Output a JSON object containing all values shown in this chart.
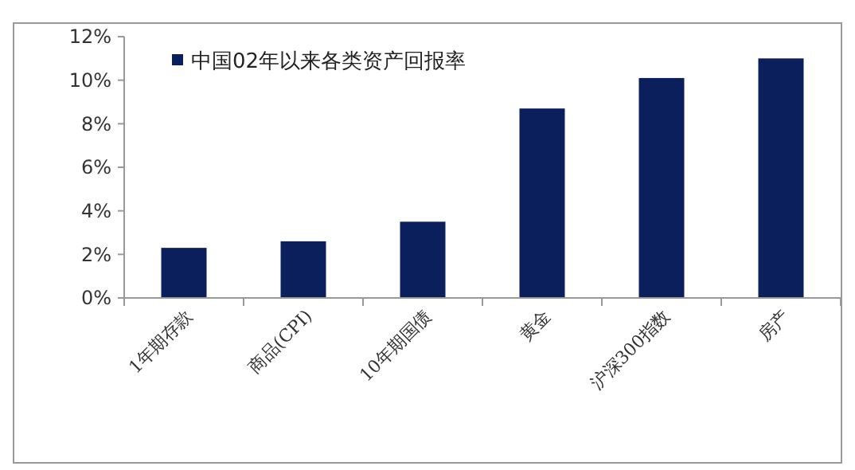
{
  "chart_data": {
    "type": "bar",
    "categories": [
      "1年期存款",
      "商品(CPI)",
      "10年期国债",
      "黄金",
      "沪深300指数",
      "房产"
    ],
    "series": [
      {
        "name": "中国02年以来各类资产回报率",
        "color": "#0a1f5c",
        "values": [
          2.3,
          2.6,
          3.5,
          8.7,
          10.1,
          11.0
        ]
      }
    ],
    "ylim": [
      0,
      12
    ],
    "yticks": [
      {
        "value": 0,
        "label": "0%"
      },
      {
        "value": 2,
        "label": "2%"
      },
      {
        "value": 4,
        "label": "4%"
      },
      {
        "value": 6,
        "label": "6%"
      },
      {
        "value": 8,
        "label": "8%"
      },
      {
        "value": 10,
        "label": "10%"
      },
      {
        "value": 12,
        "label": "12%"
      }
    ],
    "legend": "top left",
    "grid": false
  }
}
